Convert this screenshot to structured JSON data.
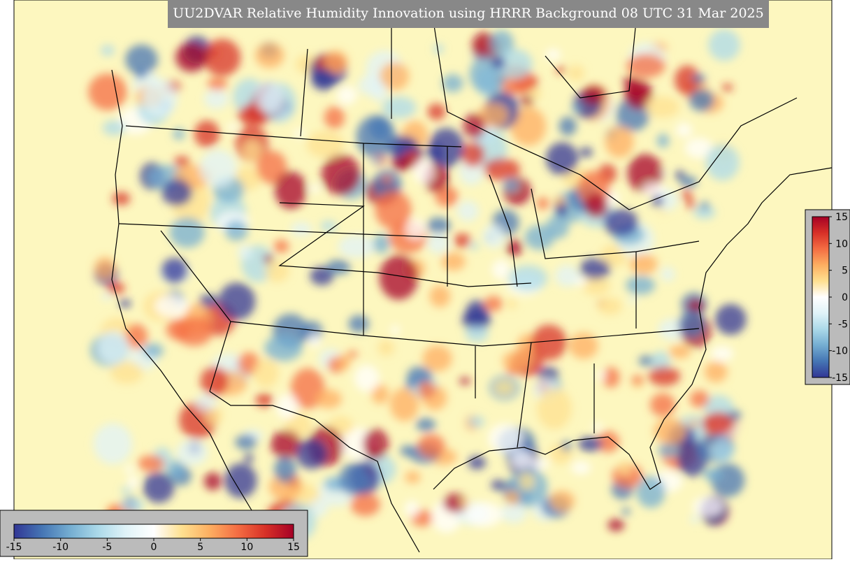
{
  "title": "UU2DVAR Relative Humidity Innovation using HRRR Background 08 UTC 31 Mar 2025",
  "colorbar_horizontal": {
    "lim": [
      -15,
      15
    ],
    "ticks": [
      -15,
      -10,
      -5,
      0,
      5,
      10,
      15
    ]
  },
  "colorbar_vertical": {
    "lim": [
      -15,
      15
    ],
    "ticks": [
      -15,
      -10,
      -5,
      0,
      5,
      10,
      15
    ]
  },
  "colormap": [
    "#313695",
    "#4575b4",
    "#74add1",
    "#abd9e9",
    "#e0f3f8",
    "#ffffff",
    "#fee090",
    "#fdae61",
    "#f46d43",
    "#d73027",
    "#a50026"
  ]
}
